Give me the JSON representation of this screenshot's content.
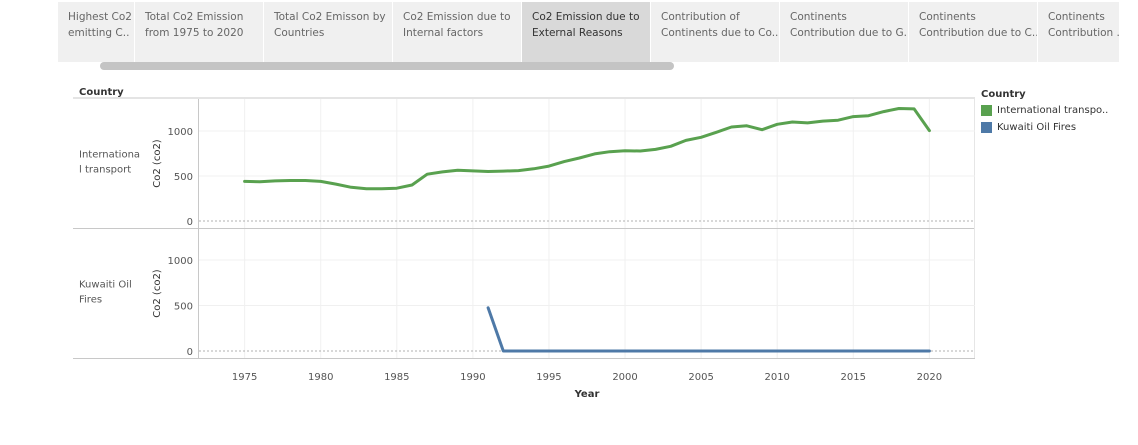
{
  "tabs": [
    {
      "line1": "Highest Co2",
      "line2": "emitting C..",
      "active": false
    },
    {
      "line1": "Total Co2 Emission",
      "line2": "from 1975 to 2020",
      "active": false
    },
    {
      "line1": "Total Co2 Emisson by",
      "line2": "Countries",
      "active": false
    },
    {
      "line1": "Co2 Emission due to",
      "line2": "Internal factors",
      "active": false
    },
    {
      "line1": "Co2 Emission due to",
      "line2": "External Reasons",
      "active": true
    },
    {
      "line1": "Contribution of",
      "line2": "Continents due to Co..",
      "active": false
    },
    {
      "line1": "Continents",
      "line2": "Contribution due to G..",
      "active": false
    },
    {
      "line1": "Continents",
      "line2": "Contribution due to C..",
      "active": false
    },
    {
      "line1": "Continents",
      "line2": "Contribution ..",
      "active": false
    }
  ],
  "chart_data": {
    "type": "line",
    "row_header": "Country",
    "xlabel": "Year",
    "xlim": [
      1972,
      2023
    ],
    "x_ticks": [
      1975,
      1980,
      1985,
      1990,
      1995,
      2000,
      2005,
      2010,
      2015,
      2020
    ],
    "grid": true,
    "legend_position": "right",
    "legend_title": "Country",
    "panels": [
      {
        "row_label_lines": [
          "Internationa",
          "l transport"
        ],
        "ylabel": "Co2 (co2)",
        "ylim": [
          0,
          1350
        ],
        "y_ticks": [
          0,
          500,
          1000
        ],
        "series": [
          {
            "name": "International transpo..",
            "color": "#59a14f",
            "x": [
              1975,
              1976,
              1977,
              1978,
              1979,
              1980,
              1981,
              1982,
              1983,
              1984,
              1985,
              1986,
              1987,
              1988,
              1989,
              1990,
              1991,
              1992,
              1993,
              1994,
              1995,
              1996,
              1997,
              1998,
              1999,
              2000,
              2001,
              2002,
              2003,
              2004,
              2005,
              2006,
              2007,
              2008,
              2009,
              2010,
              2011,
              2012,
              2013,
              2014,
              2015,
              2016,
              2017,
              2018,
              2019,
              2020
            ],
            "values": [
              440,
              435,
              445,
              450,
              450,
              440,
              410,
              375,
              358,
              358,
              365,
              400,
              520,
              545,
              565,
              557,
              550,
              555,
              560,
              580,
              610,
              660,
              700,
              745,
              770,
              780,
              778,
              795,
              830,
              895,
              930,
              985,
              1045,
              1058,
              1015,
              1075,
              1100,
              1090,
              1110,
              1120,
              1160,
              1170,
              1215,
              1250,
              1245,
              1005
            ]
          }
        ]
      },
      {
        "row_label_lines": [
          "Kuwaiti Oil",
          "Fires"
        ],
        "ylabel": "Co2 (co2)",
        "ylim": [
          0,
          1350
        ],
        "y_ticks": [
          0,
          500,
          1000
        ],
        "series": [
          {
            "name": "Kuwaiti Oil Fires",
            "color": "#4e79a7",
            "x": [
              1991,
              1992,
              1993,
              1994,
              1995,
              1996,
              1997,
              1998,
              1999,
              2000,
              2001,
              2002,
              2003,
              2004,
              2005,
              2006,
              2007,
              2008,
              2009,
              2010,
              2011,
              2012,
              2013,
              2014,
              2015,
              2016,
              2017,
              2018,
              2019,
              2020
            ],
            "values": [
              475,
              0,
              0,
              0,
              0,
              0,
              0,
              0,
              0,
              0,
              0,
              0,
              0,
              0,
              0,
              0,
              0,
              0,
              0,
              0,
              0,
              0,
              0,
              0,
              0,
              0,
              0,
              0,
              0,
              0
            ]
          }
        ]
      }
    ]
  }
}
